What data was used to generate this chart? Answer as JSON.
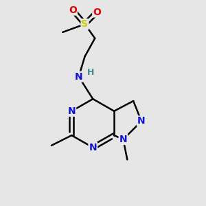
{
  "bg_color": "#e6e6e6",
  "atom_colors": {
    "N": "#1010dd",
    "O": "#dd0000",
    "S": "#cccc00",
    "H": "#448888",
    "C": "#000000"
  },
  "bond_color": "#000000",
  "bond_width": 1.8,
  "font_size": 10
}
